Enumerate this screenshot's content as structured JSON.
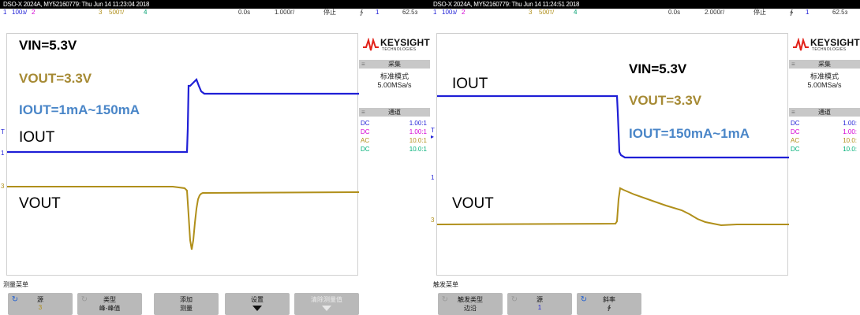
{
  "colors": {
    "ch1": "#1f1fd6",
    "ch2": "#d400d4",
    "ch3": "#b08f1a",
    "ch4": "#00c080",
    "ann_vin": "#000000",
    "ann_vout": "#a68a34",
    "ann_iout": "#4a86c8",
    "panel_gray": "#c8c8c8",
    "softkey_gray": "#b9b9b9"
  },
  "left": {
    "title": "DSO-X 2024A, MY52160779: Thu Jun 14 11:23:04 2018",
    "channels": {
      "ch1_num": "1",
      "ch1_scale": "100з/",
      "ch2_num": "2",
      "ch3_num": "3",
      "ch3_scale": "500т/",
      "ch4_num": "4",
      "time_offset": "0.0s",
      "time_scale": "1.000г/",
      "run_state": "停止",
      "trig_icon": "∱",
      "trig_ch": "1",
      "trig_level": "62.5з"
    },
    "logo": {
      "brand": "KEYSIGHT",
      "sub": "TECHNOLOGIES"
    },
    "acq": {
      "header": "采集",
      "mode": "标准模式",
      "rate": "5.00MSa/s"
    },
    "chan_panel": {
      "header": "通道",
      "rows": [
        {
          "coupling": "DC",
          "ratio": "1.00:1"
        },
        {
          "coupling": "DC",
          "ratio": "1.00:1"
        },
        {
          "coupling": "AC",
          "ratio": "10.0:1"
        },
        {
          "coupling": "DC",
          "ratio": "10.0:1"
        }
      ]
    },
    "annotations": {
      "vin": "VIN=5.3V",
      "vout": "VOUT=3.3V",
      "iout": "IOUT=1mA~150mA"
    },
    "trace_labels": {
      "iout": "IOUT",
      "vout": "VOUT"
    },
    "menu": {
      "title": "测量菜单",
      "softkeys": [
        {
          "l1": "源",
          "l2": "3"
        },
        {
          "l1": "类型",
          "l2": "峰-峰值"
        },
        {
          "l1": "添加",
          "l2": "测量"
        },
        {
          "l1": "设置",
          "l2": ""
        },
        {
          "l1": "清除测量值",
          "l2": ""
        }
      ]
    }
  },
  "right": {
    "title": "DSO-X 2024A, MY52160779: Thu Jun 14 11:24:51 2018",
    "channels": {
      "ch1_num": "1",
      "ch1_scale": "100з/",
      "ch2_num": "2",
      "ch3_num": "3",
      "ch3_scale": "500т/",
      "ch4_num": "4",
      "time_offset": "0.0s",
      "time_scale": "2.000г/",
      "run_state": "停止",
      "trig_icon": "∲",
      "trig_ch": "1",
      "trig_level": "62.5з"
    },
    "logo": {
      "brand": "KEYSIGHT",
      "sub": "TECHNOLOGIES"
    },
    "acq": {
      "header": "采集",
      "mode": "标准模式",
      "rate": "5.00MSa/s"
    },
    "chan_panel": {
      "header": "通道",
      "rows": [
        {
          "coupling": "DC",
          "ratio": "1.00:"
        },
        {
          "coupling": "DC",
          "ratio": "1.00:"
        },
        {
          "coupling": "AC",
          "ratio": "10.0:"
        },
        {
          "coupling": "DC",
          "ratio": "10.0:"
        }
      ]
    },
    "annotations": {
      "vin": "VIN=5.3V",
      "vout": "VOUT=3.3V",
      "iout": "IOUT=150mA~1mA"
    },
    "trace_labels": {
      "iout": "IOUT",
      "vout": "VOUT"
    },
    "menu": {
      "title": "触发菜单",
      "softkeys": [
        {
          "l1": "触发类型",
          "l2": "边沿"
        },
        {
          "l1": "源",
          "l2": "1"
        },
        {
          "l1": "斜率",
          "l2": "∲"
        }
      ]
    }
  }
}
